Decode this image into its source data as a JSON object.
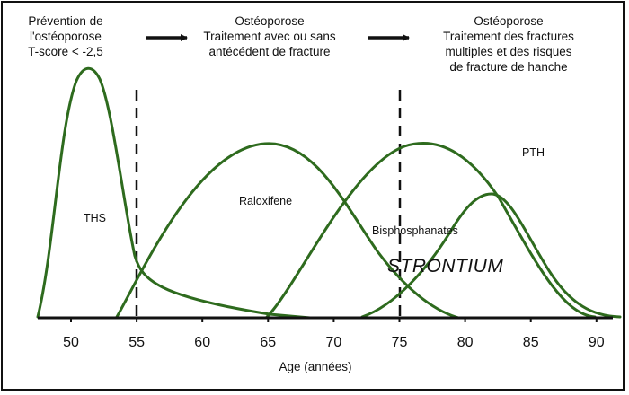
{
  "headers": [
    {
      "lines": [
        "Prévention de",
        "l'ostéoporose",
        "T-score < -2,5"
      ]
    },
    {
      "lines": [
        "Ostéoporose",
        "Traitement avec ou sans",
        "antécédent de fracture"
      ]
    },
    {
      "lines": [
        "Ostéoporose",
        "Traitement des fractures",
        "multiples et des risques",
        "de fracture de hanche"
      ]
    }
  ],
  "curve_labels": {
    "ths": "THS",
    "raloxifene": "Raloxifene",
    "bisphosphonates": "Bisphosphanates",
    "strontium": "STRONTIUM",
    "pth": "PTH"
  },
  "x_axis": {
    "label": "Age (années)",
    "ticks": [
      "50",
      "55",
      "60",
      "65",
      "70",
      "75",
      "80",
      "85",
      "90"
    ]
  },
  "colors": {
    "curve": "#2e6b1e",
    "arrow": "#111111",
    "axis": "#111111"
  }
}
